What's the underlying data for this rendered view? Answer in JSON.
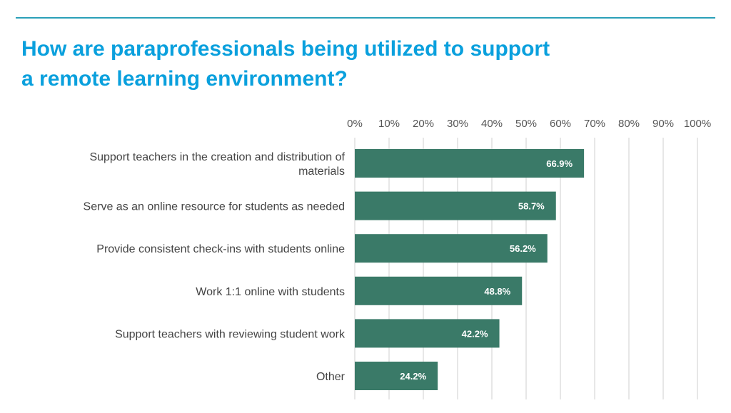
{
  "title_line1": "How are paraprofessionals being utilized to support",
  "title_line2": "a remote learning environment?",
  "colors": {
    "bar": "#3a7a68",
    "title": "#0aa0dd",
    "rule": "#2aa0b8",
    "grid": "#cfcfcf"
  },
  "chart_data": {
    "type": "bar",
    "orientation": "horizontal",
    "title": "How are paraprofessionals being utilized to support a remote learning environment?",
    "categories": [
      [
        "Support teachers in the creation and distribution of",
        "materials"
      ],
      [
        "Serve as an online resource for students as needed"
      ],
      [
        "Provide consistent check-ins with students online"
      ],
      [
        "Work 1:1 online with students"
      ],
      [
        "Support teachers with reviewing student work"
      ],
      [
        "Other"
      ]
    ],
    "values": [
      66.9,
      58.7,
      56.2,
      48.8,
      42.2,
      24.2
    ],
    "value_labels": [
      "66.9%",
      "58.7%",
      "56.2%",
      "48.8%",
      "42.2%",
      "24.2%"
    ],
    "xlim": [
      0,
      100
    ],
    "xticks": [
      0,
      10,
      20,
      30,
      40,
      50,
      60,
      70,
      80,
      90,
      100
    ],
    "xtick_labels": [
      "0%",
      "10%",
      "20%",
      "30%",
      "40%",
      "50%",
      "60%",
      "70%",
      "80%",
      "90%",
      "100%"
    ],
    "xaxis_position": "top",
    "grid": true,
    "legend": "none"
  }
}
